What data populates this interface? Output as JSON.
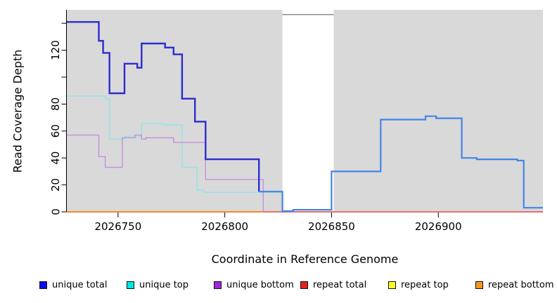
{
  "figure": {
    "xlabel": "Coordinate in Reference Genome",
    "ylabel": "Read Coverage Depth"
  },
  "legend": {
    "items": [
      {
        "label": "unique total",
        "color": "#0a0af0"
      },
      {
        "label": "unique top",
        "color": "#00e6e6"
      },
      {
        "label": "unique bottom",
        "color": "#a225dc"
      },
      {
        "label": "repeat total",
        "color": "#ea1c1c"
      },
      {
        "label": "repeat top",
        "color": "#fbfb2d"
      },
      {
        "label": "repeat bottom",
        "color": "#f6981e"
      }
    ]
  },
  "chart_data": {
    "type": "line",
    "step": true,
    "title": "",
    "xlabel": "Coordinate in Reference Genome",
    "ylabel": "Read Coverage Depth",
    "xlim": [
      2026726,
      2026949
    ],
    "ylim": [
      0,
      150
    ],
    "x_ticks": [
      2026750,
      2026800,
      2026850,
      2026900
    ],
    "y_ticks": [
      0,
      20,
      40,
      60,
      80,
      100,
      120,
      140
    ],
    "y_tick_labels": [
      "0",
      "20",
      "40",
      "60",
      "80",
      "",
      "120",
      ""
    ],
    "grid": false,
    "legend_position": "bottom",
    "plot_background": "#d9d9d9",
    "highlight_region": {
      "from": 2026827,
      "to": 2026851,
      "color": "#ffffff",
      "top_line_v": 146.5,
      "top_line_color": "#8c8c8c"
    },
    "draw_order": [
      "repeat top",
      "repeat total",
      "repeat bottom",
      "unique top",
      "unique bottom",
      "unique total"
    ],
    "series": [
      {
        "name": "unique total",
        "segments": [
          {
            "color": "#2c2cd2",
            "width": 2.4,
            "end": 2026816,
            "points": [
              [
                2026726,
                141
              ],
              [
                2026741,
                127
              ],
              [
                2026743,
                118
              ],
              [
                2026746,
                88
              ],
              [
                2026753,
                110
              ],
              [
                2026759,
                107
              ],
              [
                2026761,
                125
              ],
              [
                2026772,
                122
              ],
              [
                2026776,
                117
              ],
              [
                2026780,
                84
              ],
              [
                2026786,
                67
              ],
              [
                2026791,
                39
              ],
              [
                2026816,
                15
              ]
            ]
          },
          {
            "color": "#4285e8",
            "width": 2.2,
            "end": 2026949,
            "points": [
              [
                2026816,
                15
              ],
              [
                2026827,
                0.5
              ],
              [
                2026832,
                1.5
              ],
              [
                2026850,
                30
              ],
              [
                2026873,
                68.5
              ],
              [
                2026894,
                71
              ],
              [
                2026899,
                69.5
              ],
              [
                2026911,
                40
              ],
              [
                2026918,
                39
              ],
              [
                2026937,
                38
              ],
              [
                2026940,
                3
              ]
            ]
          }
        ]
      },
      {
        "name": "unique top",
        "segments": [
          {
            "color": "#8ee6e8",
            "width": 1.4,
            "end": 2026827,
            "points": [
              [
                2026726,
                86
              ],
              [
                2026744,
                84
              ],
              [
                2026746,
                54
              ],
              [
                2026753,
                56
              ],
              [
                2026761,
                65.5
              ],
              [
                2026771,
                64.5
              ],
              [
                2026780,
                33
              ],
              [
                2026787,
                16
              ],
              [
                2026790,
                14.5
              ],
              [
                2026827,
                0
              ]
            ]
          }
        ]
      },
      {
        "name": "unique bottom",
        "segments": [
          {
            "color": "#c490dc",
            "width": 1.4,
            "end": 2026818,
            "points": [
              [
                2026726,
                57
              ],
              [
                2026741,
                41
              ],
              [
                2026744,
                33
              ],
              [
                2026752,
                55
              ],
              [
                2026758,
                57
              ],
              [
                2026761,
                54
              ],
              [
                2026763,
                55
              ],
              [
                2026776,
                51.5
              ],
              [
                2026791,
                24
              ],
              [
                2026818,
                0
              ]
            ]
          },
          {
            "color": "#e06d89",
            "width": 1.4,
            "end": 2026949,
            "points": [
              [
                2026818,
                0
              ]
            ]
          }
        ]
      },
      {
        "name": "repeat total",
        "segments": [
          {
            "color": "#ea1c1c",
            "width": 1.4,
            "end": 2026949,
            "points": [
              [
                2026726,
                0
              ]
            ]
          }
        ]
      },
      {
        "name": "repeat top",
        "segments": [
          {
            "color": "#fbfb2d",
            "width": 1.4,
            "end": 2026949,
            "points": [
              [
                2026726,
                0
              ]
            ]
          }
        ]
      },
      {
        "name": "repeat bottom",
        "segments": [
          {
            "color": "#f6981e",
            "width": 1.6,
            "end": 2026949,
            "points": [
              [
                2026726,
                0
              ]
            ]
          }
        ]
      }
    ]
  }
}
